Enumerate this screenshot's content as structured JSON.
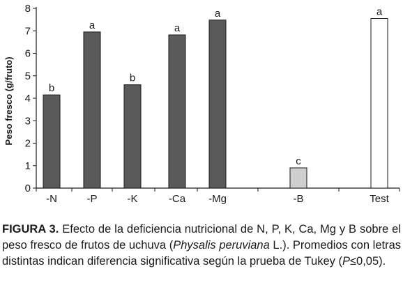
{
  "chart_data": {
    "type": "bar",
    "categories": [
      "-N",
      "-P",
      "-K",
      "-Ca",
      "-Mg",
      "-B",
      "Test"
    ],
    "values": [
      4.15,
      6.95,
      4.6,
      6.82,
      7.48,
      0.9,
      7.55
    ],
    "significance": [
      "b",
      "a",
      "b",
      "a",
      "a",
      "c",
      "a"
    ],
    "bar_colors": [
      "#5a5a5a",
      "#5a5a5a",
      "#5a5a5a",
      "#5a5a5a",
      "#5a5a5a",
      "#cfcfcf",
      "#ffffff"
    ],
    "ylabel": "Peso fresco (g/fruto)",
    "xlabel": "",
    "ylim": [
      0,
      8
    ],
    "yticks": [
      "0",
      "1",
      "2",
      "3",
      "4",
      "5",
      "6",
      "7",
      "8"
    ],
    "grid": false
  },
  "caption": {
    "label": "FIGURA 3.",
    "text_1": " Efecto de la deficiencia nutricional de N, P, K, Ca, Mg y B sobre el peso fresco de frutos de uchuva (",
    "species": "Physalis peruviana",
    "text_2": " L.). Promedios con letras distintas indican diferencia significativa según la prueba de Tukey (",
    "p_symbol": "P",
    "text_3": "≤0,05)."
  }
}
